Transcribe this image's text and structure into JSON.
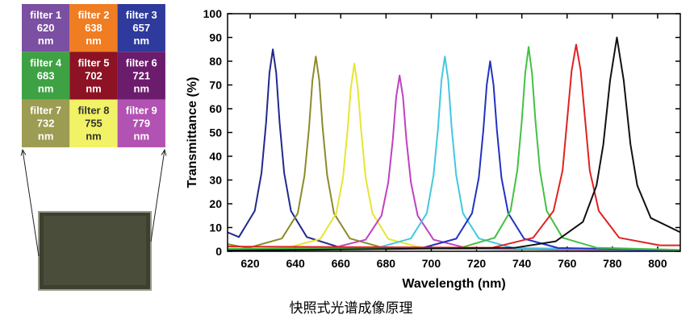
{
  "filters": [
    {
      "name": "filter 1",
      "wavelength": "620",
      "unit": "nm",
      "color": "#7b4fa2"
    },
    {
      "name": "filter 2",
      "wavelength": "638",
      "unit": "nm",
      "color": "#f07d22"
    },
    {
      "name": "filter 3",
      "wavelength": "657",
      "unit": "nm",
      "color": "#2e3a9c"
    },
    {
      "name": "filter 4",
      "wavelength": "683",
      "unit": "nm",
      "color": "#3ea244"
    },
    {
      "name": "filter 5",
      "wavelength": "702",
      "unit": "nm",
      "color": "#8c1224"
    },
    {
      "name": "filter 6",
      "wavelength": "721",
      "unit": "nm",
      "color": "#6c1c6c"
    },
    {
      "name": "filter 7",
      "wavelength": "732",
      "unit": "nm",
      "color": "#9c9c52"
    },
    {
      "name": "filter 8",
      "wavelength": "755",
      "unit": "nm",
      "color": "#f2f266"
    },
    {
      "name": "filter 9",
      "wavelength": "779",
      "unit": "nm",
      "color": "#b252b2"
    }
  ],
  "caption": "快照式光谱成像原理",
  "chart_data": {
    "type": "line",
    "xlabel": "Wavelength (nm)",
    "ylabel": "Transmittance (%)",
    "xlim": [
      610,
      810
    ],
    "xticks": [
      620,
      640,
      660,
      680,
      700,
      720,
      740,
      760,
      780,
      800
    ],
    "ylim": [
      0,
      100
    ],
    "yticks": [
      0,
      10,
      20,
      30,
      40,
      50,
      60,
      70,
      80,
      90,
      100
    ],
    "series": [
      {
        "color": "#1f2a8c",
        "x": [
          610,
          615,
          622,
          625,
          627,
          628.5,
          630,
          631.5,
          633,
          635,
          638,
          645,
          660,
          810
        ],
        "values": [
          8,
          6,
          17,
          33,
          54,
          75,
          85,
          75,
          54,
          33,
          17,
          6,
          1.5,
          0.3
        ]
      },
      {
        "color": "#8b8b2a",
        "x": [
          610,
          619,
          634,
          641,
          644,
          646,
          647.5,
          649,
          650.5,
          652,
          654,
          657,
          664,
          679,
          810
        ],
        "values": [
          3,
          1.4,
          5.4,
          16,
          32,
          52,
          72,
          82,
          72,
          52,
          32,
          16,
          5.4,
          1.4,
          0.3
        ]
      },
      {
        "color": "#e6e632",
        "x": [
          610,
          636,
          651,
          658,
          661,
          663,
          664.5,
          666,
          667.5,
          669,
          671,
          674,
          681,
          696,
          810
        ],
        "values": [
          0.5,
          1.4,
          5.2,
          16,
          31,
          51,
          69,
          79,
          69,
          51,
          31,
          16,
          5.2,
          1.4,
          0.3
        ]
      },
      {
        "color": "#c040c0",
        "x": [
          610,
          656,
          671,
          678,
          681,
          683,
          684.5,
          686,
          687.5,
          689,
          691,
          694,
          701,
          716,
          810
        ],
        "values": [
          0.5,
          1.3,
          4.9,
          15,
          29,
          47,
          65,
          74,
          65,
          47,
          29,
          15,
          4.9,
          1.3,
          0.3
        ]
      },
      {
        "color": "#44c8e0",
        "x": [
          610,
          676,
          691,
          698,
          701,
          703,
          704.5,
          706,
          707.5,
          709,
          711,
          714,
          721,
          736,
          810
        ],
        "values": [
          0.5,
          1.4,
          5.4,
          16,
          32,
          52,
          72,
          82,
          72,
          52,
          32,
          16,
          5.4,
          1.4,
          0.4
        ]
      },
      {
        "color": "#2232c2",
        "x": [
          610,
          696,
          711,
          718,
          721,
          723,
          724.5,
          726,
          727.5,
          729,
          731,
          734,
          741,
          756,
          810
        ],
        "values": [
          0.5,
          1.4,
          5.3,
          16,
          31,
          51,
          70,
          80,
          70,
          51,
          31,
          16,
          5.3,
          1.4,
          0.5
        ]
      },
      {
        "color": "#44c044",
        "x": [
          610,
          713,
          728,
          735,
          738,
          740,
          741.5,
          743,
          744.5,
          746,
          748,
          751,
          758,
          773,
          810
        ],
        "values": [
          1,
          1.5,
          5.7,
          17,
          34,
          55,
          75,
          86,
          75,
          55,
          34,
          17,
          5.7,
          1.5,
          0.6
        ]
      },
      {
        "color": "#e02222",
        "x": [
          610,
          727,
          745,
          754,
          758,
          760,
          762,
          764,
          766,
          768,
          770,
          774,
          783,
          801,
          810
        ],
        "values": [
          2,
          1.5,
          5.7,
          17,
          34,
          55,
          76,
          87,
          76,
          55,
          34,
          17,
          5.7,
          2.5,
          2.5
        ]
      },
      {
        "color": "#111111",
        "x": [
          610,
          737,
          755,
          767,
          773,
          776,
          779,
          782,
          785,
          788,
          791,
          797,
          810
        ],
        "values": [
          0.3,
          1.5,
          4.2,
          12.4,
          27.7,
          45,
          72,
          90,
          72,
          45,
          27.7,
          14,
          8
        ]
      }
    ]
  }
}
